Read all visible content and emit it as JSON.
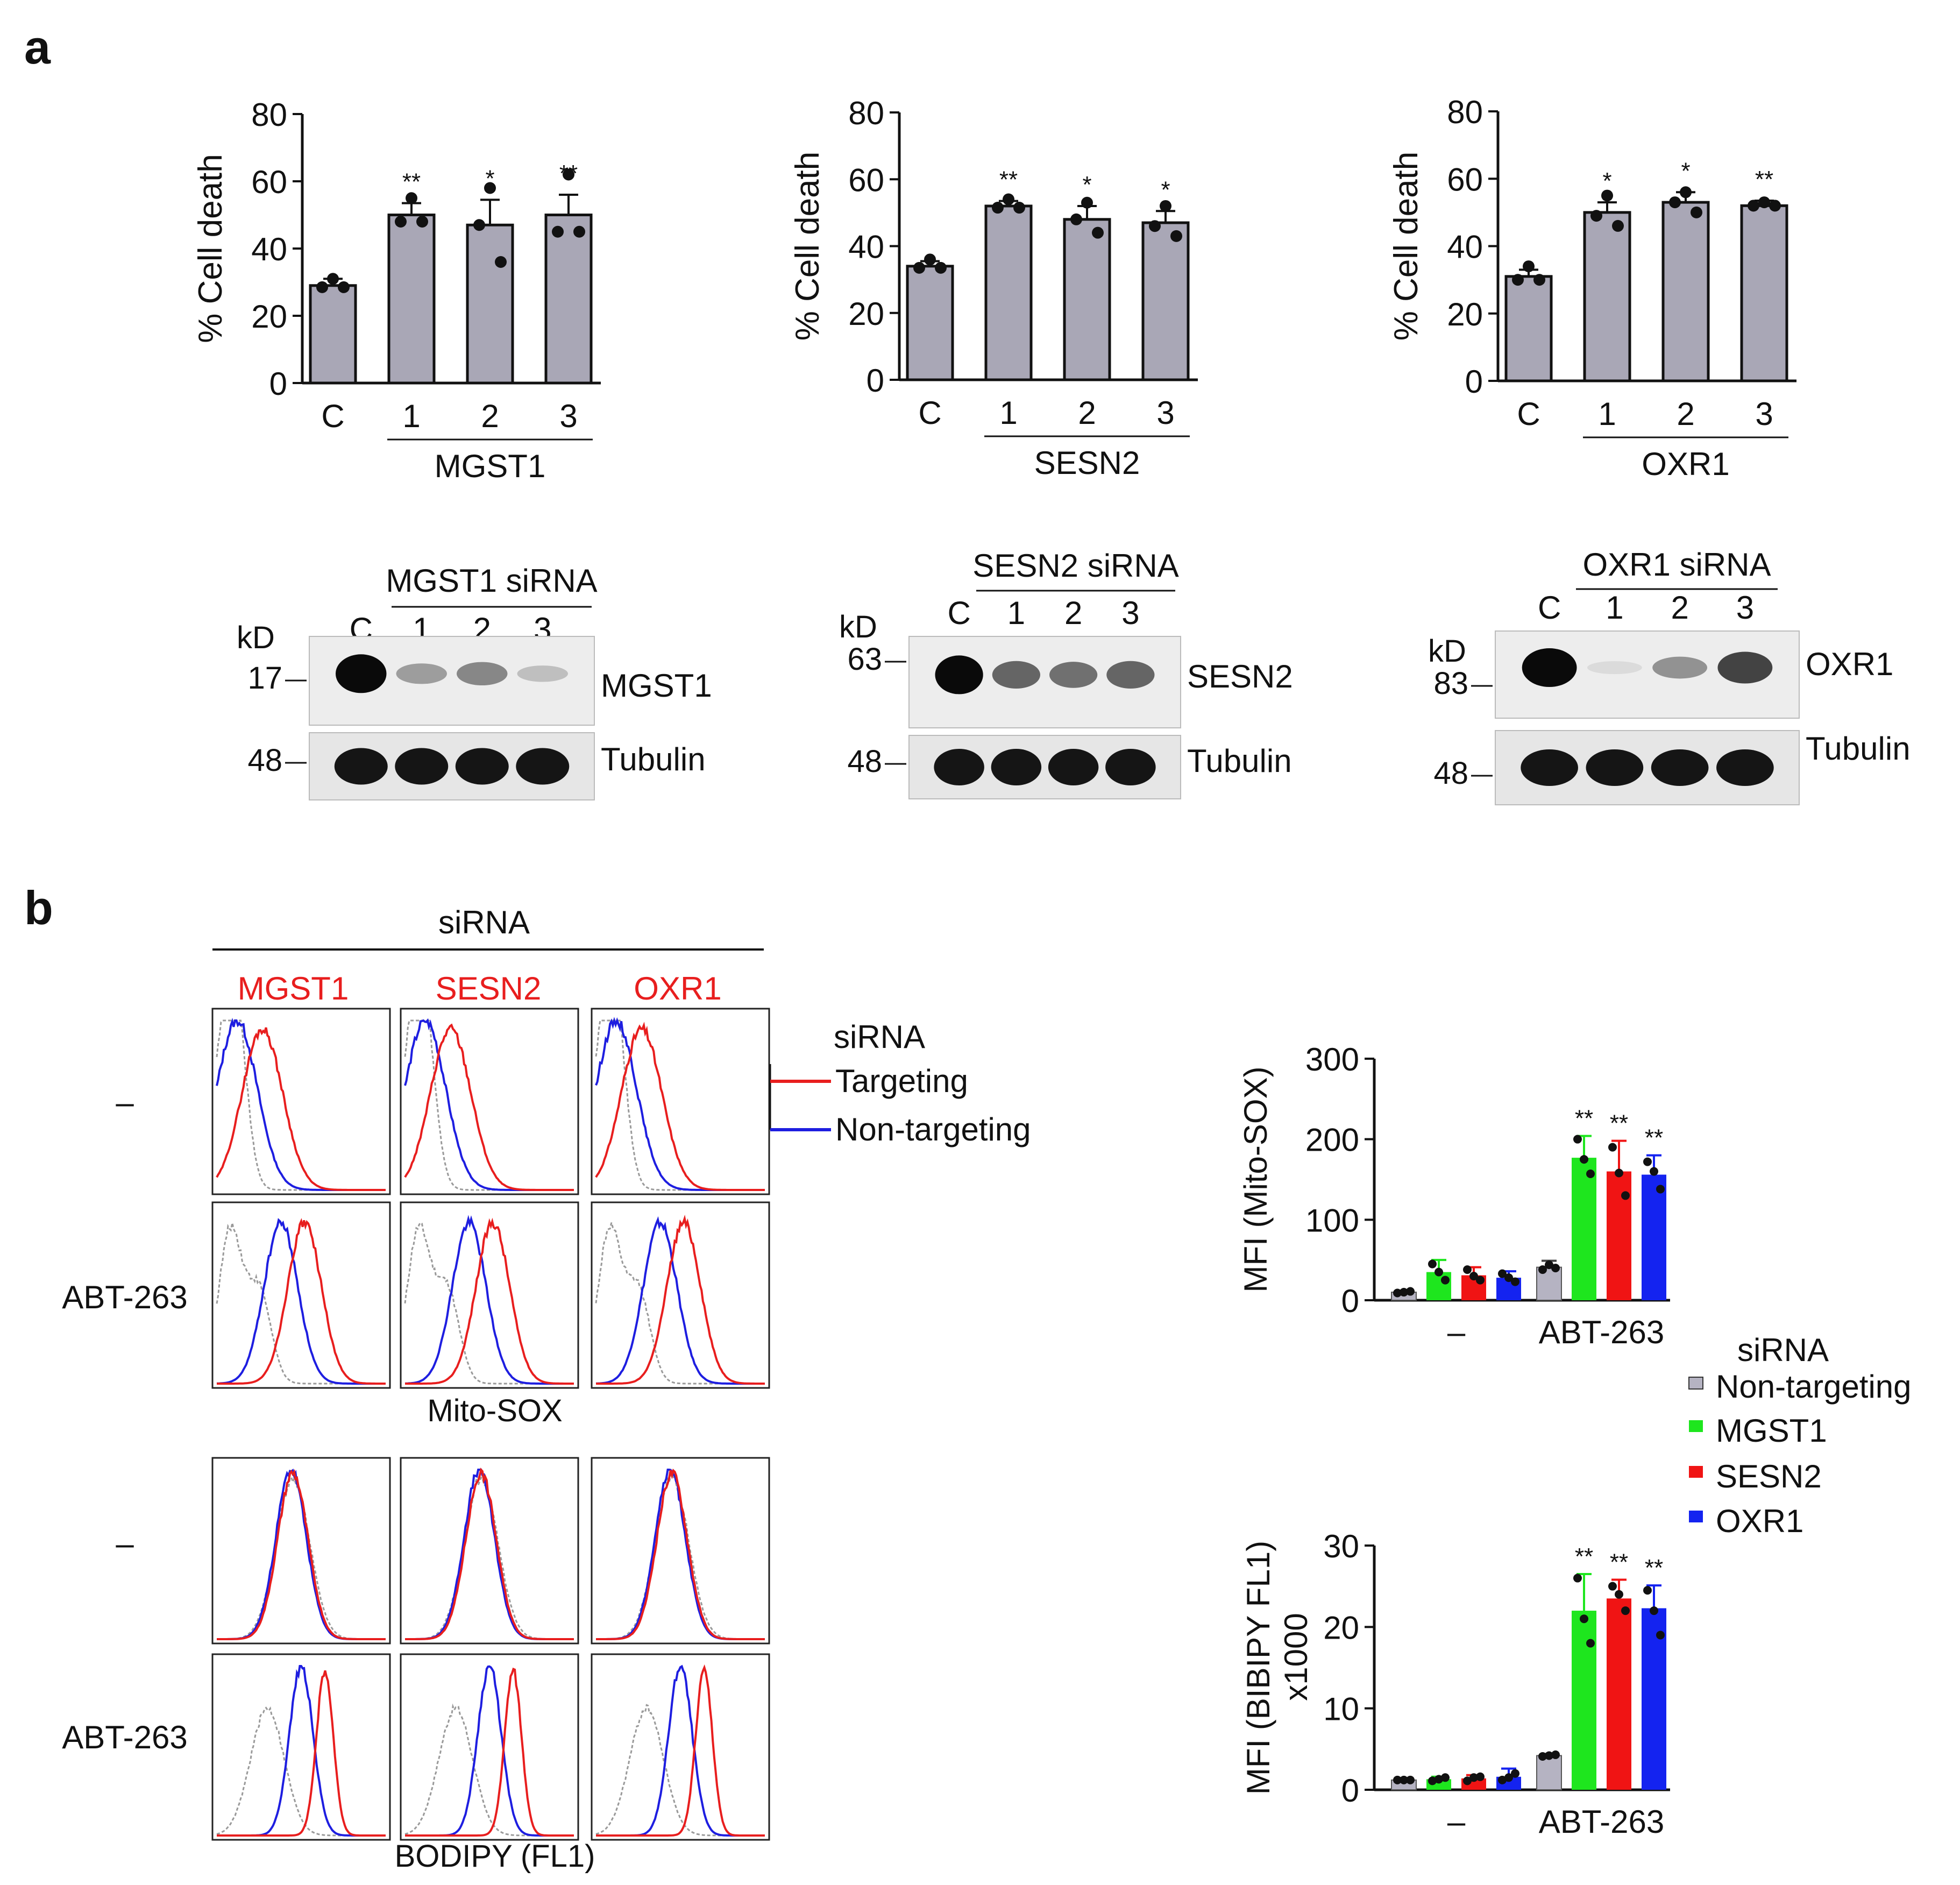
{
  "panels": {
    "a": "a",
    "b": "b"
  },
  "colors": {
    "bar_gray": "#A9A7B6",
    "nontargeting_gray": "#B5B3C2",
    "mgst1_green": "#1EE61E",
    "sesn2_red": "#F01414",
    "oxr1_blue": "#1423F0",
    "hist_red": "#E81E1E",
    "hist_blue": "#1E1EE0",
    "hist_gray": "#9A9A9A"
  },
  "chart_data": [
    {
      "type": "bar",
      "id": "mgst1-death",
      "categories": [
        "C",
        "1",
        "2",
        "3"
      ],
      "values": [
        29,
        50,
        47,
        50
      ],
      "errors": [
        2,
        3.5,
        7.5,
        6
      ],
      "points": [
        [
          31,
          28.5,
          28.5
        ],
        [
          55,
          48,
          48
        ],
        [
          58,
          47,
          36
        ],
        [
          62,
          45,
          45
        ]
      ],
      "significance": [
        "",
        "**",
        "*",
        "**"
      ],
      "ylabel": "% Cell death",
      "ylim": [
        0,
        80
      ],
      "yticks": [
        0,
        20,
        40,
        60,
        80
      ],
      "group_label": "MGST1"
    },
    {
      "type": "bar",
      "id": "sesn2-death",
      "categories": [
        "C",
        "1",
        "2",
        "3"
      ],
      "values": [
        34,
        52,
        48,
        47
      ],
      "errors": [
        1.5,
        1.5,
        4,
        3.5
      ],
      "points": [
        [
          36,
          33.5,
          33.5
        ],
        [
          54,
          51.5,
          51.5
        ],
        [
          53,
          48,
          44
        ],
        [
          52,
          46,
          43
        ]
      ],
      "significance": [
        "",
        "**",
        "*",
        "*"
      ],
      "ylabel": "% Cell death",
      "ylim": [
        0,
        80
      ],
      "yticks": [
        0,
        20,
        40,
        60,
        80
      ],
      "group_label": "SESN2"
    },
    {
      "type": "bar",
      "id": "oxr1-death",
      "categories": [
        "C",
        "1",
        "2",
        "3"
      ],
      "values": [
        31,
        50,
        53,
        52
      ],
      "errors": [
        2,
        3,
        3,
        1.5
      ],
      "points": [
        [
          34,
          30,
          30
        ],
        [
          55,
          49,
          46
        ],
        [
          56,
          53,
          50
        ],
        [
          53,
          52,
          52
        ]
      ],
      "significance": [
        "",
        "*",
        "*",
        "**"
      ],
      "ylabel": "% Cell death",
      "ylim": [
        0,
        80
      ],
      "yticks": [
        0,
        20,
        40,
        60,
        80
      ],
      "group_label": "OXR1"
    },
    {
      "type": "bar",
      "id": "mitosox-mfi",
      "categories": [
        "–",
        "ABT-263"
      ],
      "series": [
        {
          "name": "Non-targeting",
          "values": [
            10,
            41
          ],
          "errors": [
            2,
            8
          ],
          "points": [
            [
              9,
              10,
              11
            ],
            [
              38,
              44,
              40
            ]
          ]
        },
        {
          "name": "MGST1",
          "values": [
            35,
            177
          ],
          "errors": [
            15,
            27
          ],
          "points": [
            [
              45,
              35,
              25
            ],
            [
              200,
              175,
              157
            ]
          ]
        },
        {
          "name": "SESN2",
          "values": [
            31,
            160
          ],
          "errors": [
            10,
            38
          ],
          "points": [
            [
              38,
              30,
              25
            ],
            [
              190,
              158,
              130
            ]
          ]
        },
        {
          "name": "OXR1",
          "values": [
            28,
            156
          ],
          "errors": [
            8,
            24
          ],
          "points": [
            [
              33,
              28,
              23
            ],
            [
              172,
              160,
              138
            ]
          ]
        }
      ],
      "significance": [
        [
          "",
          "",
          "",
          ""
        ],
        [
          "",
          "**",
          "**",
          "**"
        ]
      ],
      "ylabel": "MFI (Mito-SOX)",
      "ylim": [
        0,
        300
      ],
      "yticks": [
        0,
        100,
        200,
        300
      ]
    },
    {
      "type": "bar",
      "id": "bodipy-mfi",
      "categories": [
        "–",
        "ABT-263"
      ],
      "series": [
        {
          "name": "Non-targeting",
          "values": [
            1.2,
            4.2
          ],
          "errors": [
            0.1,
            0.2
          ],
          "points": [
            [
              1.2,
              1.2,
              1.2
            ],
            [
              4.1,
              4.2,
              4.3
            ]
          ]
        },
        {
          "name": "MGST1",
          "values": [
            1.3,
            22
          ],
          "errors": [
            0.3,
            4.5
          ],
          "points": [
            [
              1.1,
              1.3,
              1.5
            ],
            [
              26,
              21,
              18
            ]
          ]
        },
        {
          "name": "SESN2",
          "values": [
            1.4,
            23.5
          ],
          "errors": [
            0.4,
            2.3
          ],
          "points": [
            [
              1.1,
              1.5,
              1.6
            ],
            [
              25,
              24,
              22
            ]
          ]
        },
        {
          "name": "OXR1",
          "values": [
            1.6,
            22.3
          ],
          "errors": [
            1,
            2.8
          ],
          "points": [
            [
              1.2,
              1.5,
              2
            ],
            [
              24.5,
              22,
              19
            ]
          ]
        }
      ],
      "significance": [
        [
          "",
          "",
          "",
          ""
        ],
        [
          "",
          "**",
          "**",
          "**"
        ]
      ],
      "ylabel": "MFI (BIBIPY FL1)",
      "ylabel2": "x1000",
      "ylim": [
        0,
        30
      ],
      "yticks": [
        0,
        10,
        20,
        30
      ]
    }
  ],
  "blots": [
    {
      "header": "MGST1 siRNA",
      "lanes": [
        "C",
        "1",
        "2",
        "3"
      ],
      "kd": "kD",
      "markers": [
        "17",
        "48"
      ],
      "proteins": [
        "MGST1",
        "Tubulin"
      ],
      "knockdown_intensity": [
        1.0,
        0.35,
        0.45,
        0.2
      ]
    },
    {
      "header": "SESN2 siRNA",
      "lanes": [
        "C",
        "1",
        "2",
        "3"
      ],
      "kd": "kD",
      "markers": [
        "63",
        "48"
      ],
      "proteins": [
        "SESN2",
        "Tubulin"
      ],
      "knockdown_intensity": [
        1.0,
        0.6,
        0.55,
        0.6
      ]
    },
    {
      "header": "OXR1 siRNA",
      "lanes": [
        "C",
        "1",
        "2",
        "3"
      ],
      "kd": "kD",
      "markers": [
        "83",
        "48"
      ],
      "proteins": [
        "OXR1",
        "Tubulin"
      ],
      "knockdown_intensity": [
        1.0,
        0.08,
        0.4,
        0.75
      ]
    }
  ],
  "flow": {
    "header": "siRNA",
    "columns": [
      "MGST1",
      "SESN2",
      "OXR1"
    ],
    "mitosox_rows": [
      "–",
      "ABT-263"
    ],
    "mitosox_xlabel": "Mito-SOX",
    "bodipy_rows": [
      "–",
      "ABT-263"
    ],
    "bodipy_xlabel": "BODIPY (FL1)",
    "legend": {
      "title": "siRNA",
      "targeting": "Targeting",
      "nontargeting": "Non-targeting"
    }
  },
  "bar_legend": {
    "title": "siRNA",
    "items": [
      "Non-targeting",
      "MGST1",
      "SESN2",
      "OXR1"
    ]
  }
}
